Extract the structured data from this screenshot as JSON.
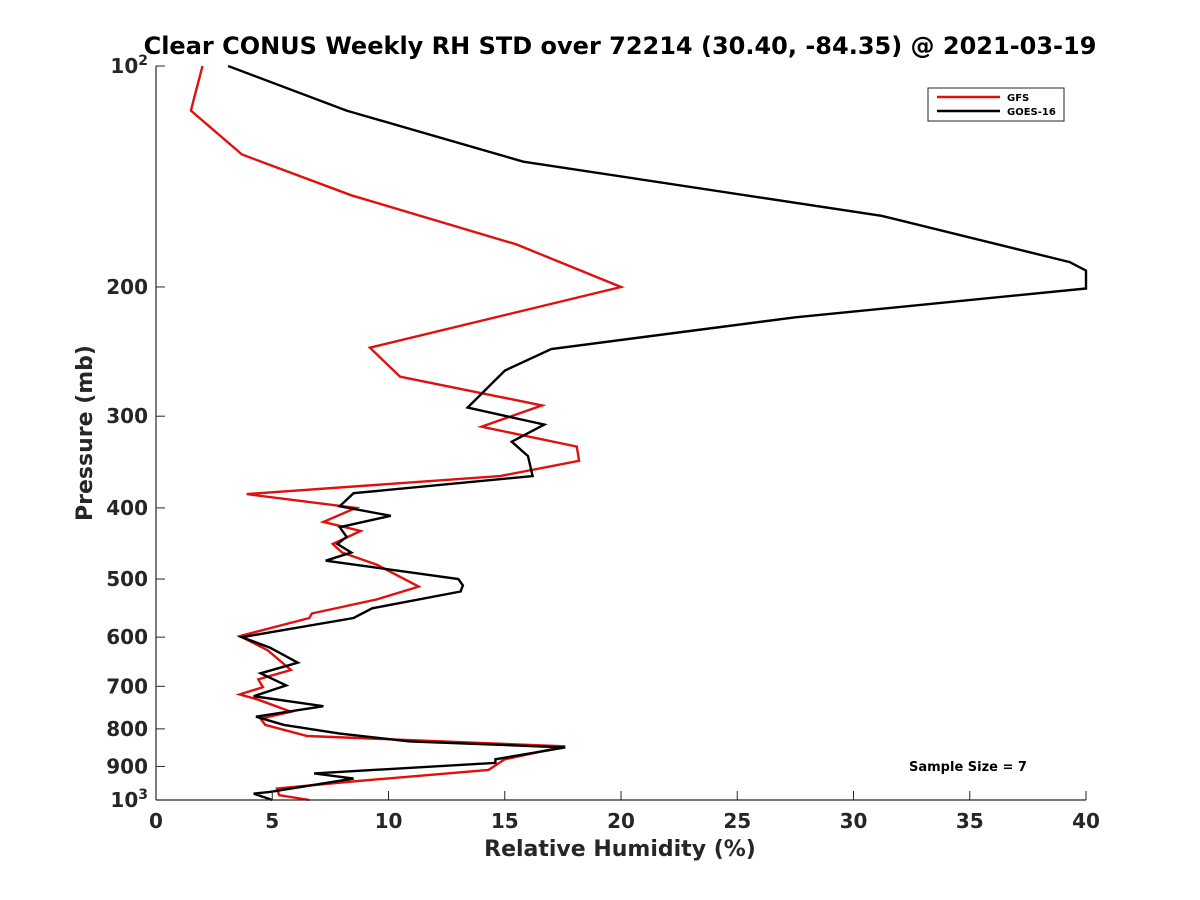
{
  "chart_data": {
    "type": "line",
    "title": "Clear CONUS Weekly RH STD over 72214 (30.40, -84.35) @ 2021-03-19",
    "xlabel": "Relative Humidity (%)",
    "ylabel": "Pressure (mb)",
    "xlim": [
      0,
      40
    ],
    "ylim": [
      100,
      1000
    ],
    "yscale": "log",
    "y_reversed": true,
    "grid": false,
    "xticks": [
      {
        "value": 0,
        "label": "0"
      },
      {
        "value": 5,
        "label": "5"
      },
      {
        "value": 10,
        "label": "10"
      },
      {
        "value": 15,
        "label": "15"
      },
      {
        "value": 20,
        "label": "20"
      },
      {
        "value": 25,
        "label": "25"
      },
      {
        "value": 30,
        "label": "30"
      },
      {
        "value": 35,
        "label": "35"
      },
      {
        "value": 40,
        "label": "40"
      }
    ],
    "yticks": [
      {
        "value": 100,
        "label": "10",
        "exp": "2"
      },
      {
        "value": 200,
        "label": "200"
      },
      {
        "value": 300,
        "label": "300"
      },
      {
        "value": 400,
        "label": "400"
      },
      {
        "value": 500,
        "label": "500"
      },
      {
        "value": 600,
        "label": "600"
      },
      {
        "value": 700,
        "label": "700"
      },
      {
        "value": 800,
        "label": "800"
      },
      {
        "value": 900,
        "label": "900"
      },
      {
        "value": 1000,
        "label": "10",
        "exp": "3"
      }
    ],
    "legend_position": "top-right",
    "series": [
      {
        "name": "GFS",
        "color": "#e0100c",
        "points": [
          [
            2.0,
            100
          ],
          [
            1.5,
            115
          ],
          [
            3.7,
            132
          ],
          [
            8.4,
            150
          ],
          [
            15.5,
            175
          ],
          [
            20.0,
            200
          ],
          [
            9.2,
            242
          ],
          [
            10.5,
            265
          ],
          [
            16.6,
            290
          ],
          [
            14.0,
            310
          ],
          [
            18.1,
            330
          ],
          [
            18.2,
            345
          ],
          [
            14.8,
            362
          ],
          [
            3.9,
            383
          ],
          [
            8.6,
            400
          ],
          [
            7.2,
            418
          ],
          [
            8.8,
            430
          ],
          [
            7.6,
            448
          ],
          [
            8.0,
            460
          ],
          [
            9.5,
            478
          ],
          [
            11.3,
            512
          ],
          [
            9.5,
            533
          ],
          [
            6.7,
            557
          ],
          [
            6.6,
            565
          ],
          [
            3.6,
            598
          ],
          [
            4.8,
            625
          ],
          [
            5.8,
            665
          ],
          [
            4.4,
            685
          ],
          [
            4.6,
            702
          ],
          [
            3.6,
            718
          ],
          [
            4.4,
            730
          ],
          [
            5.8,
            758
          ],
          [
            4.5,
            775
          ],
          [
            4.7,
            790
          ],
          [
            6.5,
            818
          ],
          [
            17.6,
            845
          ],
          [
            15.0,
            880
          ],
          [
            14.3,
            910
          ],
          [
            8.2,
            945
          ],
          [
            5.2,
            965
          ],
          [
            5.3,
            985
          ],
          [
            6.6,
            1000
          ]
        ]
      },
      {
        "name": "GOES-16",
        "color": "#000000",
        "points": [
          [
            3.1,
            100
          ],
          [
            8.2,
            115
          ],
          [
            15.8,
            135
          ],
          [
            31.2,
            160
          ],
          [
            39.3,
            185
          ],
          [
            40.0,
            190
          ],
          [
            40.0,
            201
          ],
          [
            27.5,
            220
          ],
          [
            17.0,
            243
          ],
          [
            15.0,
            260
          ],
          [
            13.4,
            292
          ],
          [
            16.7,
            308
          ],
          [
            15.3,
            325
          ],
          [
            16.0,
            340
          ],
          [
            16.2,
            362
          ],
          [
            8.5,
            382
          ],
          [
            7.9,
            398
          ],
          [
            10.1,
            410
          ],
          [
            7.9,
            425
          ],
          [
            8.2,
            438
          ],
          [
            7.8,
            448
          ],
          [
            8.4,
            460
          ],
          [
            7.3,
            472
          ],
          [
            13.0,
            500
          ],
          [
            13.2,
            510
          ],
          [
            13.1,
            520
          ],
          [
            9.3,
            548
          ],
          [
            8.5,
            565
          ],
          [
            3.7,
            600
          ],
          [
            4.9,
            620
          ],
          [
            6.1,
            650
          ],
          [
            4.5,
            672
          ],
          [
            5.6,
            698
          ],
          [
            4.2,
            722
          ],
          [
            7.2,
            745
          ],
          [
            4.3,
            770
          ],
          [
            5.5,
            790
          ],
          [
            7.9,
            812
          ],
          [
            10.9,
            832
          ],
          [
            17.6,
            848
          ],
          [
            14.6,
            880
          ],
          [
            14.6,
            890
          ],
          [
            6.8,
            920
          ],
          [
            8.5,
            935
          ],
          [
            4.9,
            975
          ],
          [
            4.2,
            980
          ],
          [
            5.0,
            1000
          ]
        ]
      }
    ],
    "annotations": [
      {
        "text": "Sample Size = 7",
        "x": 33.4,
        "y": 900
      }
    ]
  }
}
